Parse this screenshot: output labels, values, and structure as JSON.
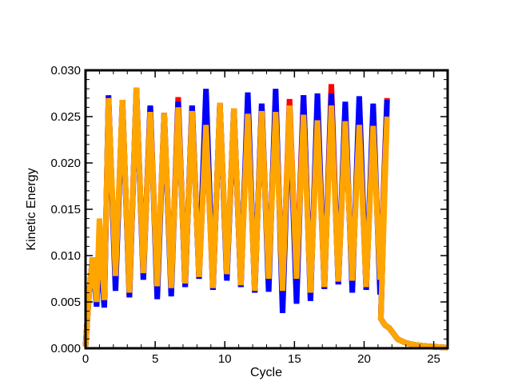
{
  "chart_data": {
    "type": "line",
    "title": "",
    "xlabel": "Cycle",
    "ylabel": "Kinetic Energy",
    "xlim": [
      0,
      26
    ],
    "ylim": [
      0,
      0.03
    ],
    "x_ticks": [
      0,
      5,
      10,
      15,
      20,
      25
    ],
    "x_tick_labels": [
      "0",
      "5",
      "10",
      "15",
      "20",
      "25"
    ],
    "y_ticks": [
      0,
      0.005,
      0.01,
      0.015,
      0.02,
      0.025,
      0.03
    ],
    "y_tick_labels": [
      "0.000",
      "0.005",
      "0.010",
      "0.015",
      "0.020",
      "0.025",
      "0.030"
    ],
    "grid": false,
    "legend": "none",
    "series_colors": [
      "#ff0000",
      "#0000ff",
      "#ffa500"
    ],
    "series": [
      {
        "color": "#ff0000",
        "peaks": [
          0.0098,
          0.0112,
          0.0271,
          0.0268,
          0.0281,
          0.0262,
          0.0254,
          0.0271,
          0.0262,
          0.0241,
          0.0265,
          0.0259,
          0.0263,
          0.0264,
          0.0268,
          0.0269,
          0.0273,
          0.0252,
          0.0285,
          0.0245,
          0.0252,
          0.0248,
          0.027
        ],
        "troughs": [
          0.0048,
          0.0049,
          0.0072,
          0.0055,
          0.0079,
          0.0065,
          0.0063,
          0.0066,
          0.0075,
          0.0063,
          0.0077,
          0.0066,
          0.006,
          0.0073,
          0.0059,
          0.0073,
          0.0058,
          0.0064,
          0.0069,
          0.0071,
          0.0063,
          0.0072
        ]
      },
      {
        "color": "#0000ff",
        "peaks": [
          0.0098,
          0.0112,
          0.0273,
          0.0268,
          0.0281,
          0.0262,
          0.0254,
          0.0266,
          0.0262,
          0.028,
          0.0265,
          0.0259,
          0.0276,
          0.0264,
          0.028,
          0.0262,
          0.0273,
          0.0275,
          0.0275,
          0.0266,
          0.0272,
          0.0264,
          0.0268
        ],
        "troughs": [
          0.0045,
          0.0044,
          0.0062,
          0.0055,
          0.0074,
          0.0053,
          0.0056,
          0.0066,
          0.0075,
          0.0063,
          0.0073,
          0.0066,
          0.006,
          0.0061,
          0.0038,
          0.0048,
          0.0051,
          0.0064,
          0.0069,
          0.006,
          0.0063,
          0.0058
        ]
      },
      {
        "color": "#ffa500",
        "peaks": [
          0.0098,
          0.014,
          0.027,
          0.0268,
          0.0281,
          0.0255,
          0.0254,
          0.026,
          0.0256,
          0.0241,
          0.0265,
          0.0259,
          0.0253,
          0.0256,
          0.0255,
          0.0262,
          0.0252,
          0.0246,
          0.0262,
          0.0245,
          0.0241,
          0.024,
          0.025
        ],
        "troughs": [
          0.005,
          0.0052,
          0.0078,
          0.006,
          0.0081,
          0.0067,
          0.0065,
          0.007,
          0.0077,
          0.0065,
          0.008,
          0.0068,
          0.0062,
          0.0075,
          0.0062,
          0.0075,
          0.006,
          0.0066,
          0.0072,
          0.0073,
          0.0066,
          0.0074
        ]
      }
    ],
    "decay": {
      "x": [
        21.2,
        21.5,
        21.8,
        22.1,
        22.4,
        22.8,
        23.2,
        23.7,
        24.3,
        25.0,
        25.6,
        26.0
      ],
      "y": [
        0.0032,
        0.0025,
        0.0022,
        0.0016,
        0.001,
        0.0007,
        0.0005,
        0.00035,
        0.00025,
        0.00016,
        0.0001,
        8e-05
      ]
    }
  }
}
